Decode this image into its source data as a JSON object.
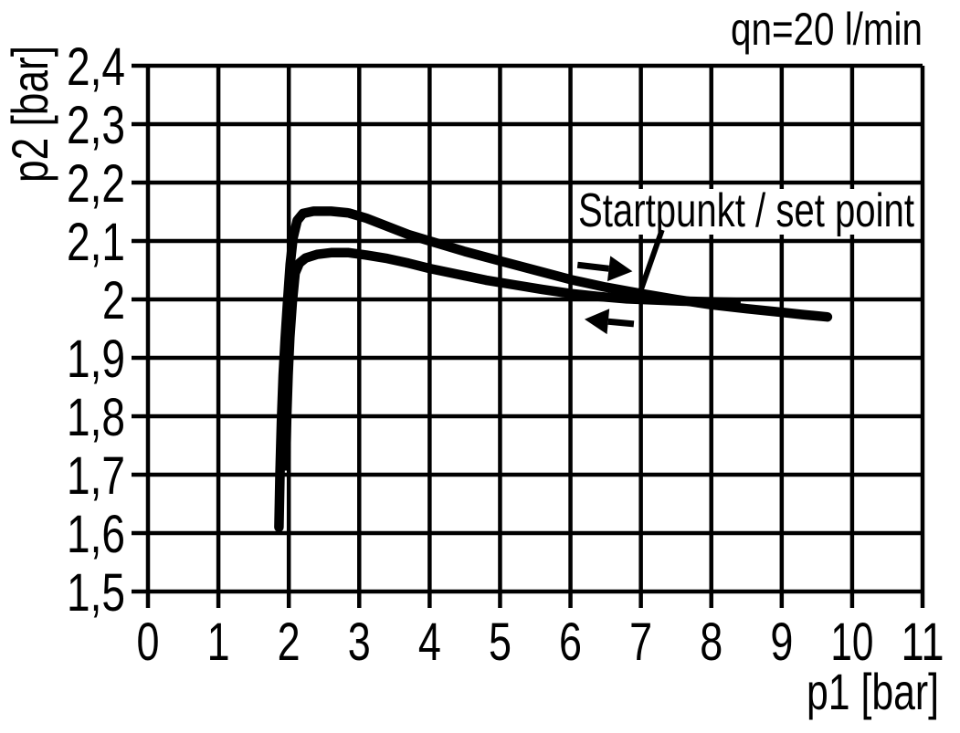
{
  "chart_data": {
    "type": "line",
    "title": "qn=20 l/min",
    "xlabel": "p1 [bar]",
    "ylabel": "p2 [bar]",
    "xlim": [
      0,
      11
    ],
    "ylim": [
      1.5,
      2.4
    ],
    "grid": true,
    "x_ticks": {
      "values": [
        0,
        1,
        2,
        3,
        4,
        5,
        6,
        7,
        8,
        9,
        10,
        11
      ],
      "labels": [
        "0",
        "1",
        "2",
        "3",
        "4",
        "5",
        "6",
        "7",
        "8",
        "9",
        "10",
        "11"
      ]
    },
    "y_ticks": {
      "values": [
        2.4,
        2.3,
        2.2,
        2.1,
        2.0,
        1.9,
        1.8,
        1.7,
        1.6,
        1.5
      ],
      "labels": [
        "2,4",
        "2,3",
        "2,2",
        "2,1",
        "2",
        "1,9",
        "1,8",
        "1,7",
        "1,6",
        "1,5"
      ]
    },
    "series": [
      {
        "name": "p2 vs p1, increasing p1 (arrow right)",
        "direction": "right",
        "points": [
          [
            1.86,
            1.61
          ],
          [
            1.875,
            1.7
          ],
          [
            1.895,
            1.79
          ],
          [
            1.92,
            1.87
          ],
          [
            1.95,
            1.935
          ],
          [
            1.985,
            2.0
          ],
          [
            2.02,
            2.06
          ],
          [
            2.06,
            2.105
          ],
          [
            2.12,
            2.135
          ],
          [
            2.2,
            2.147
          ],
          [
            2.35,
            2.151
          ],
          [
            2.6,
            2.151
          ],
          [
            2.85,
            2.148
          ],
          [
            3.1,
            2.139
          ],
          [
            3.4,
            2.125
          ],
          [
            3.7,
            2.111
          ],
          [
            4.0,
            2.1
          ],
          [
            4.5,
            2.082
          ],
          [
            5.0,
            2.066
          ],
          [
            5.5,
            2.05
          ],
          [
            6.0,
            2.034
          ],
          [
            6.5,
            2.021
          ],
          [
            7.0,
            2.01
          ],
          [
            7.5,
            2.0
          ],
          [
            8.0,
            1.991
          ],
          [
            8.5,
            1.984
          ],
          [
            9.0,
            1.978
          ],
          [
            9.3,
            1.974
          ],
          [
            9.65,
            1.97
          ]
        ]
      },
      {
        "name": "p2 vs p1, decreasing p1 (arrow left)",
        "direction": "left",
        "points": [
          [
            1.955,
            1.715
          ],
          [
            1.97,
            1.8
          ],
          [
            1.99,
            1.87
          ],
          [
            2.015,
            1.935
          ],
          [
            2.05,
            1.995
          ],
          [
            2.09,
            2.045
          ],
          [
            2.15,
            2.062
          ],
          [
            2.24,
            2.071
          ],
          [
            2.4,
            2.077
          ],
          [
            2.6,
            2.08
          ],
          [
            2.85,
            2.08
          ],
          [
            3.1,
            2.076
          ],
          [
            3.4,
            2.07
          ],
          [
            3.7,
            2.062
          ],
          [
            4.0,
            2.053
          ],
          [
            4.4,
            2.043
          ],
          [
            4.8,
            2.033
          ],
          [
            5.2,
            2.025
          ],
          [
            5.6,
            2.017
          ],
          [
            6.0,
            2.01
          ],
          [
            6.4,
            2.005
          ],
          [
            6.8,
            2.001
          ],
          [
            7.2,
            1.999
          ],
          [
            7.6,
            1.997
          ],
          [
            8.0,
            1.996
          ],
          [
            8.35,
            1.995
          ]
        ]
      }
    ],
    "annotations": {
      "flow_label": {
        "text": "qn=20 l/min"
      },
      "set_point_label": {
        "text": "Startpunkt / set point",
        "points_to": [
          7.05,
          2.01
        ],
        "leader_from": [
          7.3,
          2.119
        ],
        "leader_to": [
          6.98,
          2.009
        ]
      },
      "direction_arrows": [
        {
          "direction": "right",
          "from": [
            6.1,
            2.059
          ],
          "to": [
            6.88,
            2.048
          ]
        },
        {
          "direction": "left",
          "from": [
            6.9,
            1.958
          ],
          "to": [
            6.2,
            1.966
          ]
        }
      ]
    }
  }
}
